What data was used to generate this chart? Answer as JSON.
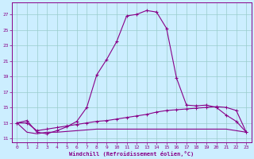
{
  "xlabel": "Windchill (Refroidissement éolien,°C)",
  "background_color": "#cceeff",
  "grid_color": "#99cccc",
  "line_color": "#880088",
  "x_ticks": [
    0,
    1,
    2,
    3,
    4,
    5,
    6,
    7,
    8,
    9,
    10,
    11,
    12,
    13,
    14,
    15,
    16,
    17,
    18,
    19,
    20,
    21,
    22,
    23
  ],
  "y_ticks": [
    11,
    13,
    15,
    17,
    19,
    21,
    23,
    25,
    27
  ],
  "xlim": [
    -0.5,
    23.5
  ],
  "ylim": [
    10.5,
    28.5
  ],
  "curve1_x": [
    0,
    1,
    2,
    3,
    4,
    5,
    6,
    7,
    8,
    9,
    10,
    11,
    12,
    13,
    14,
    15,
    16,
    17,
    18,
    19,
    20,
    21,
    22,
    23
  ],
  "curve1_y": [
    13.0,
    13.3,
    11.8,
    11.6,
    12.0,
    12.5,
    13.2,
    15.0,
    19.2,
    21.2,
    23.5,
    26.8,
    27.0,
    27.5,
    27.3,
    25.2,
    18.8,
    15.3,
    15.2,
    15.3,
    15.0,
    14.0,
    13.2,
    11.8
  ],
  "curve2_x": [
    0,
    1,
    2,
    3,
    4,
    5,
    6,
    7,
    8,
    9,
    10,
    11,
    12,
    13,
    14,
    15,
    16,
    17,
    18,
    19,
    20,
    21,
    22,
    23
  ],
  "curve2_y": [
    13.0,
    13.0,
    12.0,
    12.2,
    12.4,
    12.6,
    12.8,
    13.0,
    13.2,
    13.3,
    13.5,
    13.7,
    13.9,
    14.1,
    14.4,
    14.6,
    14.7,
    14.8,
    14.9,
    15.0,
    15.1,
    15.0,
    14.6,
    11.8
  ],
  "curve3_x": [
    0,
    1,
    2,
    3,
    4,
    5,
    6,
    7,
    8,
    9,
    10,
    11,
    12,
    13,
    14,
    15,
    16,
    17,
    18,
    19,
    20,
    21,
    22,
    23
  ],
  "curve3_y": [
    13.0,
    11.8,
    11.6,
    11.8,
    11.8,
    11.9,
    12.0,
    12.1,
    12.2,
    12.2,
    12.2,
    12.2,
    12.2,
    12.2,
    12.2,
    12.2,
    12.2,
    12.2,
    12.2,
    12.2,
    12.2,
    12.2,
    12.0,
    11.8
  ]
}
